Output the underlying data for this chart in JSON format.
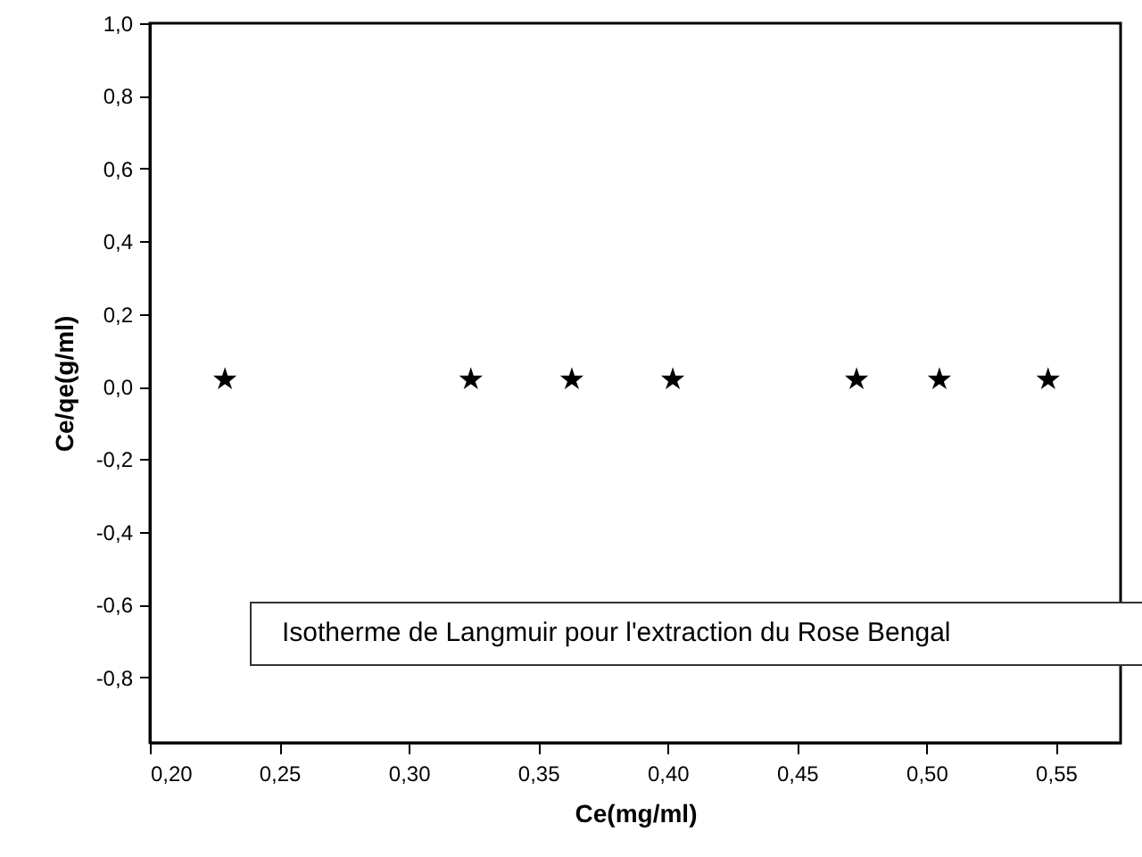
{
  "chart_data": {
    "type": "scatter",
    "xlabel": "Ce(mg/ml)",
    "ylabel": "Ce/qe(g/ml)",
    "annotations": [
      "Isotherme de Langmuir pour l'extraction du Rose Bengal"
    ],
    "x": [
      0.229,
      0.324,
      0.363,
      0.402,
      0.473,
      0.505,
      0.547
    ],
    "series": [
      {
        "color": "#000000",
        "values": [
          0.02,
          0.02,
          0.02,
          0.02,
          0.02,
          0.02,
          0.02
        ]
      }
    ],
    "xlim": [
      0.2,
      0.575
    ],
    "xticks": [
      {
        "value": 0.2,
        "label": "0,20"
      },
      {
        "value": 0.25,
        "label": "0,25"
      },
      {
        "value": 0.3,
        "label": "0,30"
      },
      {
        "value": 0.35,
        "label": "0,35"
      },
      {
        "value": 0.4,
        "label": "0,40"
      },
      {
        "value": 0.45,
        "label": "0,45"
      },
      {
        "value": 0.5,
        "label": "0,50"
      },
      {
        "value": 0.55,
        "label": "0,55"
      }
    ],
    "ylim": [
      -0.98,
      1.0
    ],
    "yticks": [
      {
        "value": -0.8,
        "label": "-0,8"
      },
      {
        "value": -0.6,
        "label": "-0,6"
      },
      {
        "value": -0.4,
        "label": "-0,4"
      },
      {
        "value": -0.2,
        "label": "-0,2"
      },
      {
        "value": 0,
        "label": "0,0"
      },
      {
        "value": 0.2,
        "label": "0,2"
      },
      {
        "value": 0.4,
        "label": "0,4"
      },
      {
        "value": 0.6,
        "label": "0,6"
      },
      {
        "value": 0.8,
        "label": "0,8"
      },
      {
        "value": 1.0,
        "label": "1,0"
      }
    ],
    "grid": false,
    "marker": "star"
  }
}
